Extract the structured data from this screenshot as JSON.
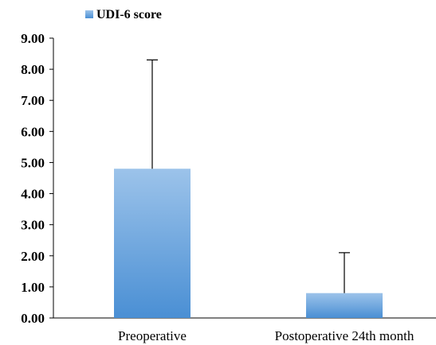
{
  "chart_data": {
    "type": "bar",
    "categories": [
      "Preoperative",
      "Postoperative 24th month"
    ],
    "series": [
      {
        "name": "UDI-6 score",
        "values": [
          4.8,
          0.8
        ],
        "error_upper": [
          8.3,
          2.1
        ]
      }
    ],
    "ylim": [
      0,
      9
    ],
    "yticks": [
      "0.00",
      "1.00",
      "2.00",
      "3.00",
      "4.00",
      "5.00",
      "6.00",
      "7.00",
      "8.00",
      "9.00"
    ],
    "legend_position": "top-left",
    "grid": false,
    "colors": {
      "bar_top": "#9cc3ea",
      "bar_bottom": "#4a8fd4",
      "error_bar": "#000000",
      "axis": "#000000"
    }
  }
}
